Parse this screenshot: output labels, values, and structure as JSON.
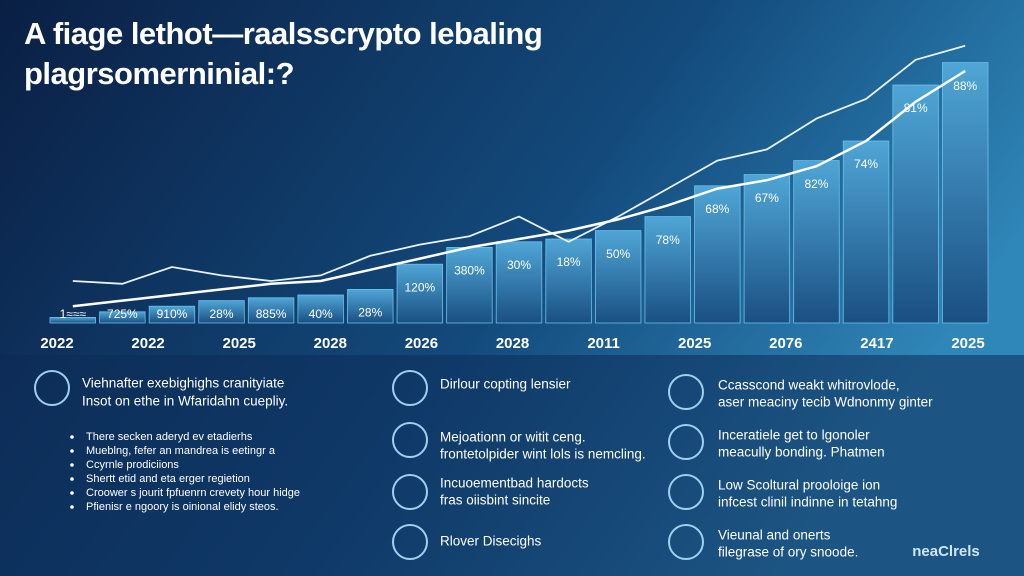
{
  "chart_data": {
    "type": "bar",
    "title": [
      "A fiage lethot—raalsscrypto lebaling",
      "plagrsomerninial:?"
    ],
    "ylim": [
      0,
      100
    ],
    "values": [
      2,
      4,
      6,
      8,
      9,
      10,
      12,
      21,
      27,
      29,
      30,
      33,
      38,
      49,
      53,
      58,
      65,
      85,
      93
    ],
    "bar_labels": [
      "1≈≈≈",
      "725%",
      "910%",
      "28%",
      "885%",
      "40%",
      "28%",
      "120%",
      "380%",
      "30%",
      "18%",
      "50%",
      "78%",
      "68%",
      "67%",
      "82%",
      "74%",
      "81%",
      "88%"
    ],
    "color": "#2f7fb5",
    "lines": [
      {
        "color": "#e8f2fb",
        "values": [
          15,
          14,
          20,
          17,
          15,
          17,
          24,
          28,
          31,
          38,
          29,
          38,
          48,
          58,
          62,
          73,
          80,
          94,
          99
        ]
      },
      {
        "color": "#ffffff",
        "values": [
          6,
          8,
          10,
          12,
          14,
          15,
          19,
          23,
          27,
          30,
          33,
          37,
          42,
          48,
          51,
          56,
          65,
          79,
          90
        ]
      }
    ],
    "x_labels": [
      "2022",
      "2022",
      "2025",
      "2028",
      "2026",
      "2028",
      "2011",
      "2025",
      "2076",
      "2417",
      "2025"
    ]
  },
  "panels": [
    {
      "heading": [
        "Viehnafter exebighighs cranityiate",
        "Insot on ethe in Wfaridahn cuepliy."
      ],
      "bullets": [
        "There secken aderyd ev etadierhs",
        "Mueblng, fefer an mandrea is eetingr a",
        "Ccyrnle prodiciions",
        "Shertt etid and eta erger regietion",
        "Croower s jourit fpfuenrn crevety hour hidge",
        "Pfienisr e ngoory is oinional elidy steos."
      ]
    },
    {
      "items": [
        [
          "Dirlour copting lensier"
        ],
        [
          "Mejoationn or witit ceng.",
          "frontetolpider wint lols is nemcling."
        ],
        [
          "Incuoementbad hardocts",
          "fras oiisbint sincite"
        ],
        [
          "Rlover Disecighs"
        ]
      ]
    },
    {
      "items": [
        [
          "Ccasscond weakt whitrovlode,",
          "aser meaciny tecib Wdnonmy ginter"
        ],
        [
          "Inceratiele get to lgonoler",
          "meacully bonding. Phatmen"
        ],
        [
          "Low Scoltural prooloige ion",
          "infcest clinil indinne in tetahng"
        ],
        [
          "Vieunal and onerts",
          "filegrase of ory snoode."
        ]
      ]
    }
  ],
  "logo": "neaClrels"
}
